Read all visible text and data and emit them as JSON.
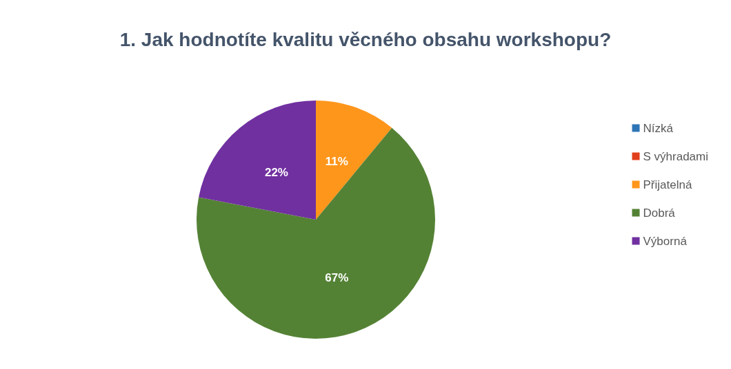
{
  "chart_data": {
    "type": "pie",
    "title": "1. Jak hodnotíte kvalitu věcného obsahu workshopu?",
    "categories": [
      "Nízká",
      "S výhradami",
      "Přijatelná",
      "Dobrá",
      "Výborná"
    ],
    "values": [
      0,
      0,
      11,
      67,
      22
    ],
    "colors": [
      "#2e75b6",
      "#e2401c",
      "#ff961c",
      "#548235",
      "#7030a0"
    ],
    "value_labels": [
      null,
      null,
      "11%",
      "67%",
      "22%"
    ],
    "legend": "right"
  }
}
